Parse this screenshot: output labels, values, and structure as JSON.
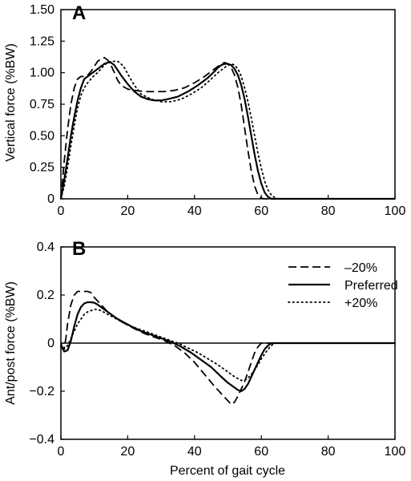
{
  "chart_data": [
    {
      "type": "line",
      "panel_label": "A",
      "xlabel": "",
      "ylabel": "Vertical force (%BW)",
      "xlim": [
        0,
        100
      ],
      "ylim": [
        0,
        1.5
      ],
      "xticks": [
        "0",
        "20",
        "40",
        "60",
        "80",
        "100"
      ],
      "yticks": [
        "0",
        "0.25",
        "0.50",
        "0.75",
        "1.00",
        "1.25",
        "1.50"
      ],
      "series": [
        {
          "name": "–20%",
          "style": "dashed",
          "points": [
            [
              0,
              0
            ],
            [
              1,
              0.3
            ],
            [
              2,
              0.55
            ],
            [
              3,
              0.75
            ],
            [
              4,
              0.88
            ],
            [
              5,
              0.95
            ],
            [
              6,
              0.97
            ],
            [
              7,
              0.97
            ],
            [
              8,
              0.98
            ],
            [
              9,
              1.01
            ],
            [
              10,
              1.05
            ],
            [
              11,
              1.09
            ],
            [
              12,
              1.11
            ],
            [
              13,
              1.12
            ],
            [
              14,
              1.1
            ],
            [
              15,
              1.06
            ],
            [
              16,
              1.0
            ],
            [
              17,
              0.94
            ],
            [
              18,
              0.9
            ],
            [
              20,
              0.87
            ],
            [
              22,
              0.86
            ],
            [
              25,
              0.85
            ],
            [
              28,
              0.85
            ],
            [
              31,
              0.85
            ],
            [
              34,
              0.86
            ],
            [
              37,
              0.88
            ],
            [
              40,
              0.92
            ],
            [
              43,
              0.97
            ],
            [
              45,
              1.01
            ],
            [
              47,
              1.05
            ],
            [
              48,
              1.07
            ],
            [
              49,
              1.08
            ],
            [
              50,
              1.07
            ],
            [
              51,
              1.04
            ],
            [
              52,
              0.98
            ],
            [
              53,
              0.88
            ],
            [
              54,
              0.74
            ],
            [
              55,
              0.56
            ],
            [
              56,
              0.38
            ],
            [
              57,
              0.22
            ],
            [
              58,
              0.1
            ],
            [
              59,
              0.03
            ],
            [
              60,
              0.005
            ],
            [
              61,
              0
            ],
            [
              100,
              0
            ]
          ]
        },
        {
          "name": "Preferred",
          "style": "solid",
          "points": [
            [
              0,
              0
            ],
            [
              1,
              0.15
            ],
            [
              2,
              0.32
            ],
            [
              3,
              0.5
            ],
            [
              4,
              0.65
            ],
            [
              5,
              0.78
            ],
            [
              6,
              0.88
            ],
            [
              7,
              0.95
            ],
            [
              8,
              0.97
            ],
            [
              9,
              0.99
            ],
            [
              10,
              1.01
            ],
            [
              11,
              1.03
            ],
            [
              12,
              1.05
            ],
            [
              13,
              1.07
            ],
            [
              14,
              1.08
            ],
            [
              15,
              1.08
            ],
            [
              16,
              1.06
            ],
            [
              17,
              1.02
            ],
            [
              18,
              0.98
            ],
            [
              20,
              0.91
            ],
            [
              22,
              0.85
            ],
            [
              24,
              0.81
            ],
            [
              26,
              0.79
            ],
            [
              28,
              0.78
            ],
            [
              30,
              0.78
            ],
            [
              32,
              0.79
            ],
            [
              35,
              0.81
            ],
            [
              38,
              0.85
            ],
            [
              41,
              0.9
            ],
            [
              44,
              0.96
            ],
            [
              46,
              1.01
            ],
            [
              47,
              1.04
            ],
            [
              48,
              1.06
            ],
            [
              49,
              1.07
            ],
            [
              50,
              1.07
            ],
            [
              51,
              1.06
            ],
            [
              52,
              1.03
            ],
            [
              53,
              0.98
            ],
            [
              54,
              0.9
            ],
            [
              55,
              0.79
            ],
            [
              56,
              0.65
            ],
            [
              57,
              0.5
            ],
            [
              58,
              0.35
            ],
            [
              59,
              0.22
            ],
            [
              60,
              0.12
            ],
            [
              61,
              0.05
            ],
            [
              62,
              0.015
            ],
            [
              63,
              0
            ],
            [
              100,
              0
            ]
          ]
        },
        {
          "name": "+20%",
          "style": "dotted",
          "points": [
            [
              0,
              0
            ],
            [
              1,
              0.1
            ],
            [
              2,
              0.25
            ],
            [
              3,
              0.42
            ],
            [
              4,
              0.58
            ],
            [
              5,
              0.72
            ],
            [
              6,
              0.82
            ],
            [
              7,
              0.88
            ],
            [
              8,
              0.92
            ],
            [
              9,
              0.95
            ],
            [
              10,
              0.98
            ],
            [
              11,
              1.0
            ],
            [
              12,
              1.03
            ],
            [
              13,
              1.06
            ],
            [
              14,
              1.08
            ],
            [
              15,
              1.09
            ],
            [
              16,
              1.09
            ],
            [
              17,
              1.09
            ],
            [
              18,
              1.07
            ],
            [
              19,
              1.04
            ],
            [
              20,
              0.99
            ],
            [
              22,
              0.9
            ],
            [
              24,
              0.83
            ],
            [
              27,
              0.79
            ],
            [
              30,
              0.77
            ],
            [
              33,
              0.77
            ],
            [
              36,
              0.79
            ],
            [
              39,
              0.83
            ],
            [
              42,
              0.88
            ],
            [
              45,
              0.95
            ],
            [
              47,
              1.0
            ],
            [
              49,
              1.04
            ],
            [
              50,
              1.06
            ],
            [
              51,
              1.07
            ],
            [
              52,
              1.06
            ],
            [
              53,
              1.03
            ],
            [
              54,
              0.97
            ],
            [
              55,
              0.88
            ],
            [
              56,
              0.77
            ],
            [
              57,
              0.64
            ],
            [
              58,
              0.5
            ],
            [
              59,
              0.36
            ],
            [
              60,
              0.24
            ],
            [
              61,
              0.14
            ],
            [
              62,
              0.07
            ],
            [
              63,
              0.03
            ],
            [
              64,
              0.01
            ],
            [
              65,
              0
            ],
            [
              100,
              0
            ]
          ]
        }
      ]
    },
    {
      "type": "line",
      "panel_label": "B",
      "xlabel": "Percent of gait cycle",
      "ylabel": "Ant/post force (%BW)",
      "xlim": [
        0,
        100
      ],
      "ylim": [
        -0.4,
        0.4
      ],
      "xticks": [
        "0",
        "20",
        "40",
        "60",
        "80",
        "100"
      ],
      "yticks": [
        "−0.4",
        "−0.2",
        "0",
        "0.2",
        "0.4"
      ],
      "legend_position": "top-right",
      "zero_line": true,
      "series": [
        {
          "name": "–20%",
          "style": "dashed",
          "points": [
            [
              0,
              0
            ],
            [
              0.5,
              -0.02
            ],
            [
              1,
              -0.02
            ],
            [
              1.5,
              0.02
            ],
            [
              2,
              0.08
            ],
            [
              3,
              0.16
            ],
            [
              4,
              0.2
            ],
            [
              5,
              0.215
            ],
            [
              6,
              0.215
            ],
            [
              7,
              0.215
            ],
            [
              8,
              0.215
            ],
            [
              9,
              0.21
            ],
            [
              10,
              0.19
            ],
            [
              12,
              0.16
            ],
            [
              14,
              0.13
            ],
            [
              16,
              0.11
            ],
            [
              18,
              0.09
            ],
            [
              20,
              0.075
            ],
            [
              22,
              0.06
            ],
            [
              25,
              0.04
            ],
            [
              28,
              0.025
            ],
            [
              31,
              0.01
            ],
            [
              34,
              -0.01
            ],
            [
              37,
              -0.04
            ],
            [
              40,
              -0.08
            ],
            [
              43,
              -0.13
            ],
            [
              46,
              -0.18
            ],
            [
              48,
              -0.21
            ],
            [
              50,
              -0.24
            ],
            [
              51,
              -0.255
            ],
            [
              52,
              -0.245
            ],
            [
              53,
              -0.22
            ],
            [
              54,
              -0.19
            ],
            [
              55,
              -0.16
            ],
            [
              56,
              -0.12
            ],
            [
              57,
              -0.08
            ],
            [
              58,
              -0.04
            ],
            [
              59,
              -0.015
            ],
            [
              60,
              0
            ],
            [
              100,
              0
            ]
          ]
        },
        {
          "name": "Preferred",
          "style": "solid",
          "points": [
            [
              0,
              -0.01
            ],
            [
              1,
              -0.035
            ],
            [
              2,
              -0.03
            ],
            [
              3,
              0.01
            ],
            [
              4,
              0.07
            ],
            [
              5,
              0.12
            ],
            [
              6,
              0.15
            ],
            [
              7,
              0.165
            ],
            [
              8,
              0.17
            ],
            [
              9,
              0.17
            ],
            [
              10,
              0.168
            ],
            [
              11,
              0.16
            ],
            [
              13,
              0.14
            ],
            [
              15,
              0.12
            ],
            [
              17,
              0.1
            ],
            [
              19,
              0.085
            ],
            [
              21,
              0.07
            ],
            [
              24,
              0.05
            ],
            [
              27,
              0.035
            ],
            [
              30,
              0.02
            ],
            [
              33,
              0.005
            ],
            [
              36,
              -0.015
            ],
            [
              39,
              -0.04
            ],
            [
              42,
              -0.07
            ],
            [
              45,
              -0.1
            ],
            [
              48,
              -0.14
            ],
            [
              50,
              -0.165
            ],
            [
              52,
              -0.185
            ],
            [
              53,
              -0.195
            ],
            [
              54,
              -0.2
            ],
            [
              55,
              -0.19
            ],
            [
              56,
              -0.17
            ],
            [
              57,
              -0.14
            ],
            [
              58,
              -0.11
            ],
            [
              59,
              -0.08
            ],
            [
              60,
              -0.05
            ],
            [
              61,
              -0.025
            ],
            [
              62,
              -0.01
            ],
            [
              63,
              0
            ],
            [
              100,
              0
            ]
          ]
        },
        {
          "name": "+20%",
          "style": "dotted",
          "points": [
            [
              0,
              -0.01
            ],
            [
              1,
              -0.025
            ],
            [
              2,
              -0.01
            ],
            [
              3,
              0.02
            ],
            [
              4,
              0.05
            ],
            [
              5,
              0.08
            ],
            [
              6,
              0.1
            ],
            [
              7,
              0.12
            ],
            [
              8,
              0.13
            ],
            [
              9,
              0.135
            ],
            [
              10,
              0.14
            ],
            [
              11,
              0.14
            ],
            [
              12,
              0.135
            ],
            [
              14,
              0.12
            ],
            [
              16,
              0.105
            ],
            [
              18,
              0.09
            ],
            [
              20,
              0.075
            ],
            [
              23,
              0.06
            ],
            [
              26,
              0.045
            ],
            [
              29,
              0.03
            ],
            [
              32,
              0.015
            ],
            [
              35,
              0.0
            ],
            [
              38,
              -0.02
            ],
            [
              41,
              -0.04
            ],
            [
              44,
              -0.065
            ],
            [
              47,
              -0.09
            ],
            [
              50,
              -0.12
            ],
            [
              52,
              -0.14
            ],
            [
              54,
              -0.155
            ],
            [
              55,
              -0.155
            ],
            [
              56,
              -0.145
            ],
            [
              57,
              -0.13
            ],
            [
              58,
              -0.11
            ],
            [
              59,
              -0.09
            ],
            [
              60,
              -0.065
            ],
            [
              61,
              -0.045
            ],
            [
              62,
              -0.025
            ],
            [
              63,
              -0.01
            ],
            [
              64,
              0
            ],
            [
              100,
              0
            ]
          ]
        }
      ]
    }
  ]
}
